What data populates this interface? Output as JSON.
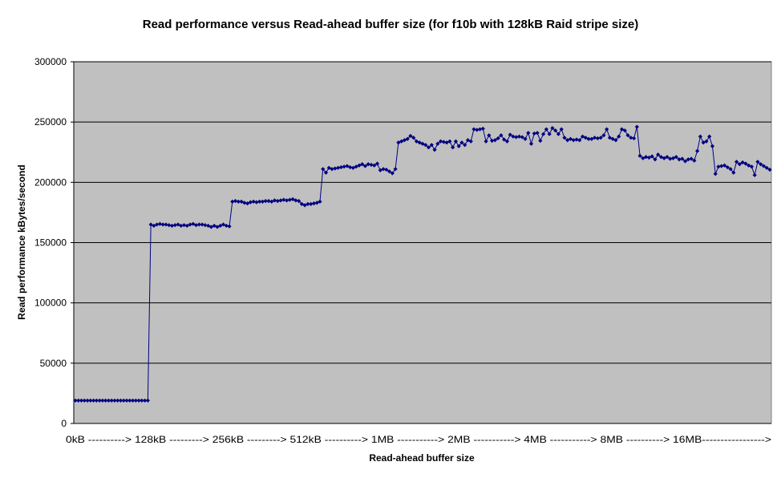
{
  "chart_data": {
    "type": "line",
    "title": "Read performance versus Read-ahead buffer size (for f10b with 128kB Raid stripe size)",
    "xlabel": "Read-ahead buffer size",
    "ylabel": "Read performance kBytes/second",
    "ylim": [
      0,
      300000
    ],
    "y_ticks": [
      "0",
      "50000",
      "100000",
      "150000",
      "200000",
      "250000",
      "300000"
    ],
    "x_tick_text": "0kB ----------> 128kB ---------> 256kB ---------> 512kB ----------> 1MB -----------> 2MB -----------> 4MB -----------> 8MB ----------> 16MB----------------->",
    "grid": true,
    "legend": "none",
    "colors": {
      "series": "#000080",
      "plot_bg": "#c0c0c0",
      "grid": "#000000"
    },
    "series": [
      {
        "values": [
          19000,
          19000,
          19000,
          19000,
          19000,
          19000,
          19000,
          19000,
          19000,
          19000,
          19000,
          19000,
          19000,
          19000,
          19000,
          19000,
          19000,
          19000,
          19000,
          19000,
          19000,
          19000,
          19000,
          19000,
          19000,
          165000,
          164000,
          165000,
          165500,
          165000,
          165000,
          164500,
          164000,
          164500,
          165000,
          164000,
          164500,
          164000,
          165000,
          165500,
          164500,
          165000,
          165000,
          164500,
          164000,
          163000,
          164000,
          163000,
          164000,
          165000,
          164000,
          163500,
          184000,
          184500,
          184000,
          184000,
          183000,
          182500,
          183500,
          184000,
          183500,
          184000,
          184000,
          184500,
          184500,
          184000,
          185000,
          184500,
          185000,
          185500,
          185000,
          185500,
          186000,
          185000,
          184500,
          182000,
          181000,
          182000,
          182000,
          182500,
          183000,
          184000,
          211000,
          208000,
          212000,
          211000,
          211500,
          212000,
          212500,
          213000,
          213500,
          212500,
          212000,
          213000,
          214000,
          215000,
          213500,
          215000,
          214500,
          214000,
          215500,
          210000,
          211000,
          210500,
          209000,
          207500,
          211000,
          233000,
          234000,
          235000,
          236000,
          238500,
          237000,
          234000,
          233000,
          232000,
          231000,
          229000,
          231000,
          227000,
          232000,
          234000,
          233500,
          233000,
          234000,
          229000,
          234000,
          230000,
          233000,
          231000,
          235000,
          234000,
          244000,
          243500,
          244000,
          244500,
          234000,
          239000,
          234500,
          235000,
          236500,
          239000,
          235500,
          234000,
          239500,
          238000,
          237500,
          238000,
          237500,
          236000,
          241000,
          232000,
          240500,
          241000,
          234500,
          240000,
          244000,
          240000,
          245000,
          243000,
          240000,
          244000,
          237000,
          235000,
          236000,
          235000,
          235500,
          235000,
          238000,
          237000,
          236000,
          236000,
          237000,
          236500,
          237000,
          239000,
          244000,
          237000,
          236000,
          235000,
          238000,
          244000,
          243000,
          239000,
          237000,
          236500,
          246000,
          222000,
          220000,
          221000,
          220500,
          221500,
          219000,
          223000,
          221000,
          220000,
          221000,
          219500,
          220000,
          221000,
          219000,
          219500,
          217500,
          219000,
          219500,
          218000,
          226000,
          238000,
          233000,
          234000,
          238000,
          230000,
          207000,
          213000,
          213500,
          214000,
          212500,
          211000,
          208000,
          217000,
          215000,
          216500,
          215500,
          214000,
          213000,
          206000,
          217000,
          215000,
          213500,
          212000,
          210500
        ]
      }
    ]
  }
}
